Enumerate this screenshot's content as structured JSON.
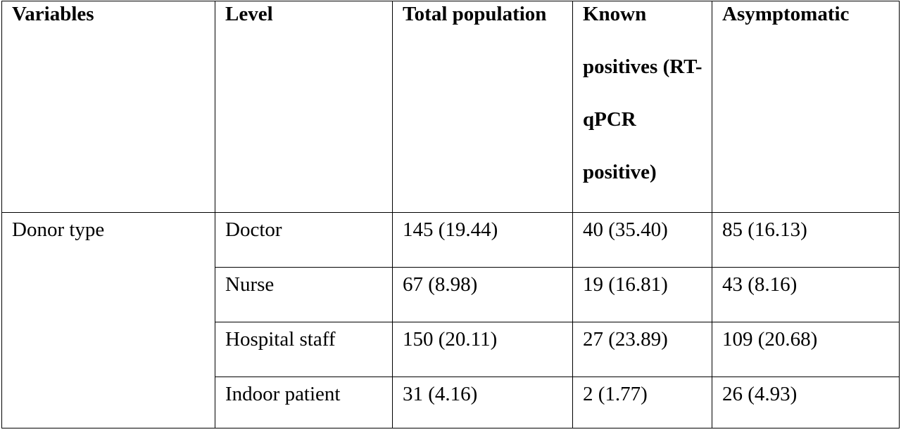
{
  "table": {
    "headers": [
      "Variables",
      "Level",
      "Total population",
      "Known positives (RT-qPCR positive)",
      "Asymptomatic"
    ],
    "group_label": "Donor type",
    "rows": [
      {
        "level": "Doctor",
        "total": "145 (19.44)",
        "known": "40 (35.40)",
        "asym": "85 (16.13)"
      },
      {
        "level": "Nurse",
        "total": "67 (8.98)",
        "known": "19 (16.81)",
        "asym": "43 (8.16)"
      },
      {
        "level": "Hospital staff",
        "total": "150 (20.11)",
        "known": "27 (23.89)",
        "asym": "109 (20.68)"
      },
      {
        "level": "Indoor patient",
        "total": "31 (4.16)",
        "known": "2 (1.77)",
        "asym": "26 (4.93)"
      }
    ]
  }
}
